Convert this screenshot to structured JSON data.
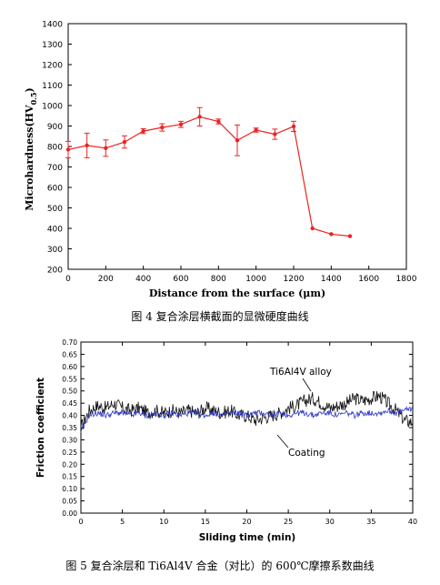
{
  "chart_data": [
    {
      "type": "line",
      "xlabel": "Distance from the surface (μm)",
      "ylabel_main": "Microhardness(HV",
      "ylabel_sub": "0.5",
      "ylabel_close": ")",
      "xlim": [
        0,
        1800
      ],
      "ylim": [
        200,
        1400
      ],
      "xticks": [
        0,
        200,
        400,
        600,
        800,
        1000,
        1200,
        1400,
        1600,
        1800
      ],
      "yticks": [
        200,
        300,
        400,
        500,
        600,
        700,
        800,
        900,
        1000,
        1100,
        1200,
        1300,
        1400
      ],
      "series": [
        {
          "color": "#ee2222",
          "x": [
            0,
            100,
            200,
            300,
            400,
            500,
            600,
            700,
            800,
            900,
            1000,
            1100,
            1200,
            1300,
            1400,
            1500
          ],
          "y": [
            785,
            805,
            792,
            822,
            875,
            893,
            908,
            945,
            922,
            830,
            880,
            860,
            898,
            400,
            372,
            362
          ],
          "err": [
            40,
            60,
            40,
            30,
            12,
            18,
            15,
            45,
            12,
            75,
            10,
            25,
            25,
            0,
            0,
            0
          ]
        }
      ]
    },
    {
      "type": "line",
      "xlabel": "Sliding time (min)",
      "ylabel": "Friction coefficient",
      "xlim": [
        0,
        40
      ],
      "ylim": [
        0,
        0.7
      ],
      "xticks": [
        0,
        5,
        10,
        15,
        20,
        25,
        30,
        35,
        40
      ],
      "yticks": [
        0.0,
        0.05,
        0.1,
        0.15,
        0.2,
        0.25,
        0.3,
        0.35,
        0.4,
        0.45,
        0.5,
        0.55,
        0.6,
        0.65,
        0.7
      ],
      "annotations": [
        "Ti6Al4V alloy",
        "Coating"
      ],
      "series": [
        {
          "name": "Ti6Al4V alloy",
          "color": "#111111",
          "x": [
            0,
            1,
            2,
            3,
            4,
            5,
            6,
            7,
            8,
            9,
            10,
            11,
            12,
            13,
            14,
            15,
            16,
            17,
            18,
            19,
            20,
            21,
            22,
            23,
            24,
            25,
            26,
            27,
            28,
            29,
            30,
            31,
            32,
            33,
            34,
            35,
            36,
            37,
            38,
            39,
            40
          ],
          "y": [
            0.35,
            0.42,
            0.44,
            0.43,
            0.45,
            0.43,
            0.42,
            0.43,
            0.41,
            0.42,
            0.41,
            0.42,
            0.41,
            0.42,
            0.41,
            0.43,
            0.42,
            0.41,
            0.42,
            0.4,
            0.4,
            0.38,
            0.39,
            0.4,
            0.41,
            0.43,
            0.44,
            0.46,
            0.47,
            0.45,
            0.43,
            0.44,
            0.45,
            0.47,
            0.46,
            0.47,
            0.48,
            0.45,
            0.42,
            0.38,
            0.37
          ]
        },
        {
          "name": "Coating",
          "color": "#2a35c9",
          "x": [
            0,
            1,
            2,
            3,
            4,
            5,
            6,
            7,
            8,
            9,
            10,
            11,
            12,
            13,
            14,
            15,
            16,
            17,
            18,
            19,
            20,
            21,
            22,
            23,
            24,
            25,
            26,
            27,
            28,
            29,
            30,
            31,
            32,
            33,
            34,
            35,
            36,
            37,
            38,
            39,
            40
          ],
          "y": [
            0.33,
            0.4,
            0.41,
            0.4,
            0.41,
            0.41,
            0.4,
            0.41,
            0.4,
            0.41,
            0.4,
            0.41,
            0.4,
            0.41,
            0.41,
            0.4,
            0.41,
            0.4,
            0.41,
            0.41,
            0.4,
            0.41,
            0.41,
            0.4,
            0.41,
            0.4,
            0.41,
            0.41,
            0.4,
            0.41,
            0.41,
            0.4,
            0.41,
            0.4,
            0.41,
            0.41,
            0.41,
            0.42,
            0.41,
            0.42,
            0.43
          ]
        }
      ]
    }
  ],
  "captions": {
    "fig4": "图 4  复合涂层横截面的显微硬度曲线",
    "fig5": "图 5 复合涂层和 Ti6Al4V 合金（对比）的 600℃摩擦系数曲线"
  }
}
